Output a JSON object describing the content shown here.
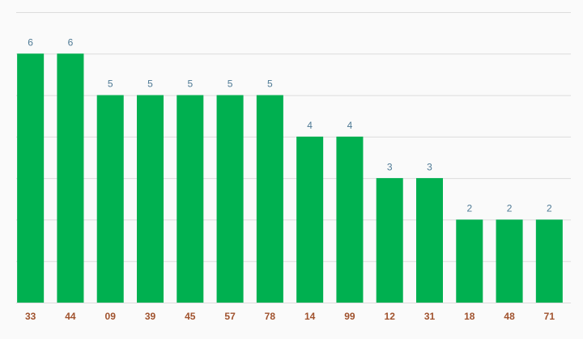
{
  "chart_data": {
    "type": "bar",
    "categories": [
      "33",
      "44",
      "09",
      "39",
      "45",
      "57",
      "78",
      "14",
      "99",
      "12",
      "31",
      "18",
      "48",
      "71"
    ],
    "values": [
      6,
      6,
      5,
      5,
      5,
      5,
      5,
      4,
      4,
      3,
      3,
      2,
      2,
      2
    ],
    "color": "#00b050",
    "ylim": [
      0,
      7
    ],
    "yticks": [
      0,
      1,
      2,
      3,
      4,
      5,
      6,
      7
    ],
    "grid": true
  }
}
